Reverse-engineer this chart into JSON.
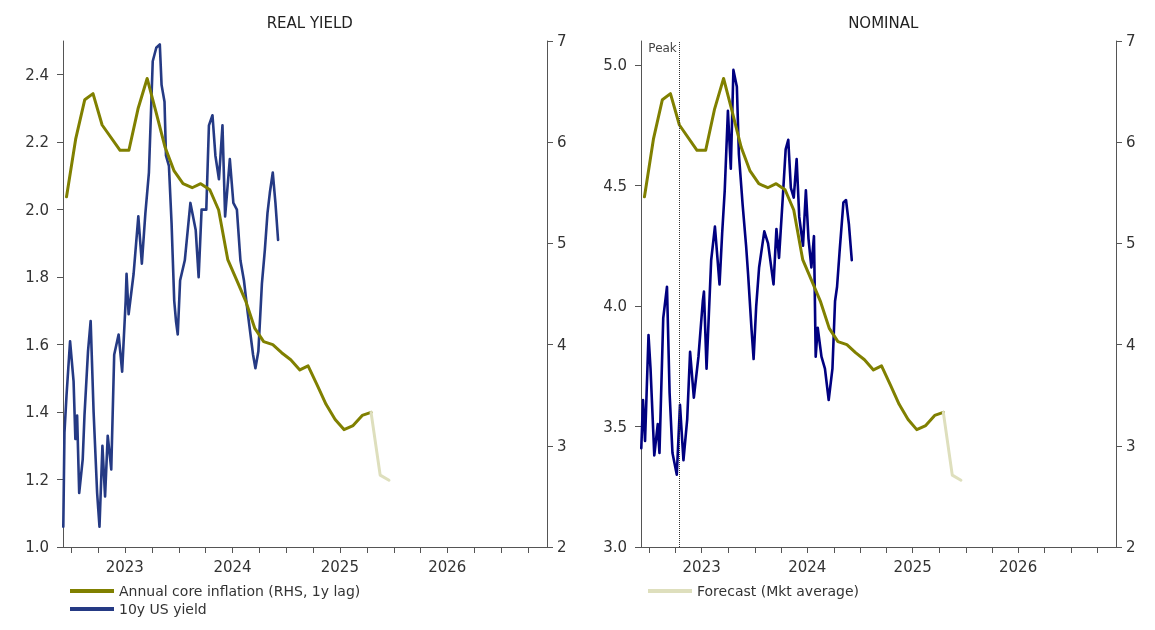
{
  "chart_data": [
    {
      "type": "line",
      "title": "REAL YIELD",
      "grid": false,
      "marker": "none",
      "legend": "bottom left",
      "xlim": [
        "2022-12-03",
        "2027-06-05"
      ],
      "xticks": [
        {
          "value": "2023-01-01",
          "label": null
        },
        {
          "value": "2023-04-01",
          "label": null
        },
        {
          "value": "2023-07-01",
          "label": "2023"
        },
        {
          "value": "2023-10-01",
          "label": null
        },
        {
          "value": "2024-01-01",
          "label": null
        },
        {
          "value": "2024-04-01",
          "label": null
        },
        {
          "value": "2024-07-01",
          "label": "2024"
        },
        {
          "value": "2024-10-01",
          "label": null
        },
        {
          "value": "2025-01-01",
          "label": null
        },
        {
          "value": "2025-04-01",
          "label": null
        },
        {
          "value": "2025-07-01",
          "label": "2025"
        },
        {
          "value": "2025-10-01",
          "label": null
        },
        {
          "value": "2026-01-01",
          "label": null
        },
        {
          "value": "2026-04-01",
          "label": null
        },
        {
          "value": "2026-07-01",
          "label": "2026"
        },
        {
          "value": "2026-10-01",
          "label": null
        },
        {
          "value": "2027-01-01",
          "label": null
        },
        {
          "value": "2027-04-01",
          "label": null
        }
      ],
      "ylim": [
        1.0,
        2.5
      ],
      "yticks": [
        {
          "value": 1,
          "label": "1.0"
        },
        1.2,
        1.4,
        1.6,
        1.8,
        {
          "value": 2,
          "label": "2.0"
        },
        2.2,
        2.4
      ],
      "y2lim": [
        2,
        7
      ],
      "y2ticks": [
        2,
        3,
        4,
        5,
        6,
        7
      ],
      "series": [
        {
          "name": "Annual core inflation (RHS, 1y lag)",
          "color": "#808000",
          "axis": "y2",
          "x": [
            "2022-12-15",
            "2023-01-15",
            "2023-02-15",
            "2023-03-15",
            "2023-04-15",
            "2023-06-15",
            "2023-07-15",
            "2023-08-15",
            "2023-09-15",
            "2023-10-15",
            "2023-11-15",
            "2023-12-15",
            "2024-01-15",
            "2024-02-15",
            "2024-03-15",
            "2024-04-15",
            "2024-05-15",
            "2024-06-15",
            "2024-07-15",
            "2024-08-15",
            "2024-09-15",
            "2024-10-15",
            "2024-11-15",
            "2024-12-15",
            "2025-01-15",
            "2025-02-15",
            "2025-03-15",
            "2025-04-15",
            "2025-05-15",
            "2025-06-15",
            "2025-07-15",
            "2025-08-15",
            "2025-09-15",
            "2025-10-15"
          ],
          "values": [
            5.46,
            6.03,
            6.42,
            6.48,
            6.17,
            5.92,
            5.92,
            6.33,
            6.63,
            6.3,
            5.95,
            5.72,
            5.59,
            5.55,
            5.59,
            5.53,
            5.33,
            4.84,
            4.64,
            4.43,
            4.16,
            4.03,
            4.0,
            3.92,
            3.85,
            3.75,
            3.79,
            3.6,
            3.41,
            3.26,
            3.16,
            3.2,
            3.3,
            3.33
          ]
        },
        {
          "name": "10y US yield",
          "color": "#253a84",
          "x": [
            "2022-12-04",
            "2022-12-08",
            "2022-12-15",
            "2022-12-27",
            "2023-01-08",
            "2023-01-14",
            "2023-01-20",
            "2023-01-27",
            "2023-02-08",
            "2023-02-14",
            "2023-02-26",
            "2023-03-07",
            "2023-03-17",
            "2023-03-29",
            "2023-04-06",
            "2023-04-16",
            "2023-04-25",
            "2023-05-04",
            "2023-05-16",
            "2023-05-26",
            "2023-06-10",
            "2023-06-22",
            "2023-07-04",
            "2023-07-07",
            "2023-07-14",
            "2023-07-31",
            "2023-08-16",
            "2023-08-28",
            "2023-09-09",
            "2023-09-21",
            "2023-10-04",
            "2023-10-16",
            "2023-10-28",
            "2023-11-03",
            "2023-11-13",
            "2023-11-18",
            "2023-11-28",
            "2023-12-07",
            "2023-12-16",
            "2023-12-22",
            "2023-12-28",
            "2024-01-05",
            "2024-01-21",
            "2024-02-09",
            "2024-02-27",
            "2024-03-08",
            "2024-03-18",
            "2024-04-03",
            "2024-04-12",
            "2024-04-24",
            "2024-05-04",
            "2024-05-16",
            "2024-05-28",
            "2024-06-06",
            "2024-06-22",
            "2024-07-04",
            "2024-07-16",
            "2024-07-28",
            "2024-08-09",
            "2024-08-21",
            "2024-09-09",
            "2024-09-17",
            "2024-09-27",
            "2024-10-09",
            "2024-10-19",
            "2024-10-28",
            "2024-11-05",
            "2024-11-15",
            "2024-11-24",
            "2024-12-03"
          ],
          "values": [
            1.06,
            1.34,
            1.45,
            1.61,
            1.49,
            1.32,
            1.39,
            1.16,
            1.26,
            1.39,
            1.58,
            1.67,
            1.4,
            1.16,
            1.06,
            1.3,
            1.15,
            1.33,
            1.23,
            1.57,
            1.63,
            1.52,
            1.73,
            1.81,
            1.69,
            1.81,
            1.98,
            1.84,
            1.99,
            2.11,
            2.44,
            2.48,
            2.49,
            2.37,
            2.32,
            2.16,
            2.13,
            1.96,
            1.73,
            1.67,
            1.63,
            1.79,
            1.85,
            2.02,
            1.94,
            1.8,
            2.0,
            2.0,
            2.25,
            2.28,
            2.16,
            2.09,
            2.25,
            1.98,
            2.15,
            2.02,
            2.0,
            1.85,
            1.79,
            1.7,
            1.57,
            1.53,
            1.58,
            1.78,
            1.88,
            1.99,
            2.05,
            2.11,
            2.02,
            1.91
          ]
        },
        {
          "color": "#dedfbd",
          "axis": "y2",
          "x": [
            "2025-10-15",
            "2025-11-15",
            "2025-12-15"
          ],
          "values": [
            3.33,
            2.71,
            2.66
          ]
        }
      ]
    },
    {
      "type": "line",
      "title": "NOMINAL",
      "grid": false,
      "marker": "none",
      "legend": "bottom left",
      "xlim": [
        "2022-12-03",
        "2027-06-05"
      ],
      "xticks": [
        {
          "value": "2023-01-01",
          "label": null
        },
        {
          "value": "2023-04-01",
          "label": null
        },
        {
          "value": "2023-07-01",
          "label": "2023"
        },
        {
          "value": "2023-10-01",
          "label": null
        },
        {
          "value": "2024-01-01",
          "label": null
        },
        {
          "value": "2024-04-01",
          "label": null
        },
        {
          "value": "2024-07-01",
          "label": "2024"
        },
        {
          "value": "2024-10-01",
          "label": null
        },
        {
          "value": "2025-01-01",
          "label": null
        },
        {
          "value": "2025-04-01",
          "label": null
        },
        {
          "value": "2025-07-01",
          "label": "2025"
        },
        {
          "value": "2025-10-01",
          "label": null
        },
        {
          "value": "2026-01-01",
          "label": null
        },
        {
          "value": "2026-04-01",
          "label": null
        },
        {
          "value": "2026-07-01",
          "label": "2026"
        },
        {
          "value": "2026-10-01",
          "label": null
        },
        {
          "value": "2027-01-01",
          "label": null
        },
        {
          "value": "2027-04-01",
          "label": null
        }
      ],
      "ylim": [
        3.0,
        5.1
      ],
      "yticks": [
        {
          "value": 3,
          "label": "3.0"
        },
        3.5,
        {
          "value": 4,
          "label": "4.0"
        },
        4.5,
        {
          "value": 5,
          "label": "5.0"
        }
      ],
      "y2lim": [
        2,
        7
      ],
      "y2ticks": [
        2,
        3,
        4,
        5,
        6,
        7
      ],
      "ref_lines": [
        {
          "axis": "x",
          "value": "2023-04-13",
          "label": "Peak",
          "color": "#333333",
          "line_style": "dotted"
        }
      ],
      "series": [
        {
          "color": "#808000",
          "axis": "y2",
          "x": [
            "2022-12-15",
            "2023-01-15",
            "2023-02-15",
            "2023-03-15",
            "2023-04-15",
            "2023-06-15",
            "2023-07-15",
            "2023-08-15",
            "2023-09-15",
            "2023-10-15",
            "2023-11-15",
            "2023-12-15",
            "2024-01-15",
            "2024-02-15",
            "2024-03-15",
            "2024-04-15",
            "2024-05-15",
            "2024-06-15",
            "2024-07-15",
            "2024-08-15",
            "2024-09-15",
            "2024-10-15",
            "2024-11-15",
            "2024-12-15",
            "2025-01-15",
            "2025-02-15",
            "2025-03-15",
            "2025-04-15",
            "2025-05-15",
            "2025-06-15",
            "2025-07-15",
            "2025-08-15",
            "2025-09-15",
            "2025-10-15"
          ],
          "values": [
            5.46,
            6.03,
            6.42,
            6.48,
            6.17,
            5.92,
            5.92,
            6.33,
            6.63,
            6.3,
            5.95,
            5.72,
            5.59,
            5.55,
            5.59,
            5.53,
            5.33,
            4.84,
            4.64,
            4.43,
            4.16,
            4.03,
            4.0,
            3.92,
            3.85,
            3.75,
            3.79,
            3.6,
            3.41,
            3.26,
            3.16,
            3.2,
            3.3,
            3.33
          ]
        },
        {
          "color": "#000080",
          "x": [
            "2022-12-04",
            "2022-12-10",
            "2022-12-17",
            "2022-12-29",
            "2023-01-05",
            "2023-01-18",
            "2023-01-30",
            "2023-02-05",
            "2023-02-18",
            "2023-03-03",
            "2023-03-12",
            "2023-03-22",
            "2023-04-06",
            "2023-04-17",
            "2023-04-29",
            "2023-05-12",
            "2023-05-22",
            "2023-06-04",
            "2023-06-20",
            "2023-07-05",
            "2023-07-09",
            "2023-07-18",
            "2023-08-03",
            "2023-08-16",
            "2023-09-01",
            "2023-09-10",
            "2023-09-19",
            "2023-09-30",
            "2023-10-10",
            "2023-10-19",
            "2023-10-31",
            "2023-11-07",
            "2023-11-20",
            "2023-12-02",
            "2023-12-09",
            "2023-12-21",
            "2023-12-28",
            "2024-01-06",
            "2024-01-16",
            "2024-02-03",
            "2024-02-16",
            "2024-03-06",
            "2024-03-16",
            "2024-03-25",
            "2024-04-07",
            "2024-04-17",
            "2024-04-26",
            "2024-05-05",
            "2024-05-15",
            "2024-05-25",
            "2024-06-03",
            "2024-06-16",
            "2024-06-26",
            "2024-07-05",
            "2024-07-15",
            "2024-07-24",
            "2024-07-30",
            "2024-08-06",
            "2024-08-19",
            "2024-08-31",
            "2024-09-13",
            "2024-09-26",
            "2024-10-05",
            "2024-10-12",
            "2024-10-21",
            "2024-11-03",
            "2024-11-12",
            "2024-11-22",
            "2024-12-02"
          ],
          "values": [
            3.41,
            3.61,
            3.44,
            3.88,
            3.74,
            3.38,
            3.51,
            3.39,
            3.95,
            4.08,
            3.64,
            3.39,
            3.3,
            3.59,
            3.36,
            3.53,
            3.81,
            3.62,
            3.79,
            4.02,
            4.06,
            3.74,
            4.19,
            4.33,
            4.09,
            4.3,
            4.48,
            4.81,
            4.57,
            4.98,
            4.91,
            4.63,
            4.42,
            4.25,
            4.13,
            3.9,
            3.78,
            4.0,
            4.16,
            4.31,
            4.26,
            4.09,
            4.32,
            4.2,
            4.45,
            4.65,
            4.69,
            4.49,
            4.45,
            4.61,
            4.37,
            4.25,
            4.48,
            4.28,
            4.16,
            4.29,
            3.79,
            3.91,
            3.79,
            3.74,
            3.61,
            3.74,
            4.02,
            4.08,
            4.23,
            4.43,
            4.44,
            4.34,
            4.19
          ]
        },
        {
          "name": "Forecast (Mkt average)",
          "color": "#dedfbd",
          "axis": "y2",
          "x": [
            "2025-10-15",
            "2025-11-15",
            "2025-12-15"
          ],
          "values": [
            3.33,
            2.71,
            2.66
          ]
        }
      ]
    }
  ]
}
